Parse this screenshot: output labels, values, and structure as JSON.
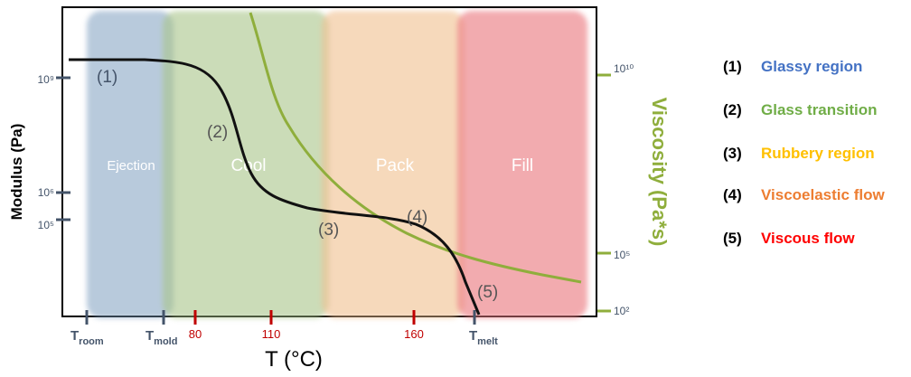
{
  "zones": [
    {
      "label": "Ejection",
      "color": "#7f9fc0"
    },
    {
      "label": "Cool",
      "color": "#a9c58a"
    },
    {
      "label": "Pack",
      "color": "#f1c08f"
    },
    {
      "label": "Fill",
      "color": "#ec7f85"
    }
  ],
  "left_axis": {
    "title": "Modulus (Pa)",
    "ticks": [
      {
        "label": "10⁹",
        "value": 9
      },
      {
        "label": "10⁶",
        "value": 6
      },
      {
        "label": "10⁵",
        "value": 5
      }
    ]
  },
  "right_axis": {
    "title": "Viscosity (Pa*s)",
    "color": "#8fae3c",
    "ticks": [
      {
        "label": "10¹⁰",
        "value": 10
      },
      {
        "label": "10⁵",
        "value": 5
      },
      {
        "label": "10²",
        "value": 2
      }
    ]
  },
  "x_axis": {
    "title": "T (°C)",
    "tick_color": "#c00000",
    "named_ticks": [
      {
        "base": "T",
        "sub": "room"
      },
      {
        "base": "T",
        "sub": "mold"
      },
      {
        "base": "T",
        "sub": "melt"
      }
    ],
    "numeric_ticks": [
      "80",
      "110",
      "160"
    ]
  },
  "curve_labels": [
    "(1)",
    "(2)",
    "(3)",
    "(4)",
    "(5)"
  ],
  "legend": [
    {
      "num": "(1)",
      "text": "Glassy region",
      "color": "#4472c4"
    },
    {
      "num": "(2)",
      "text": "Glass transition",
      "color": "#70ad47"
    },
    {
      "num": "(3)",
      "text": "Rubbery region",
      "color": "#ffc000"
    },
    {
      "num": "(4)",
      "text": "Viscoelastic flow",
      "color": "#ed7d31"
    },
    {
      "num": "(5)",
      "text": "Viscous flow",
      "color": "#ff0000"
    }
  ]
}
